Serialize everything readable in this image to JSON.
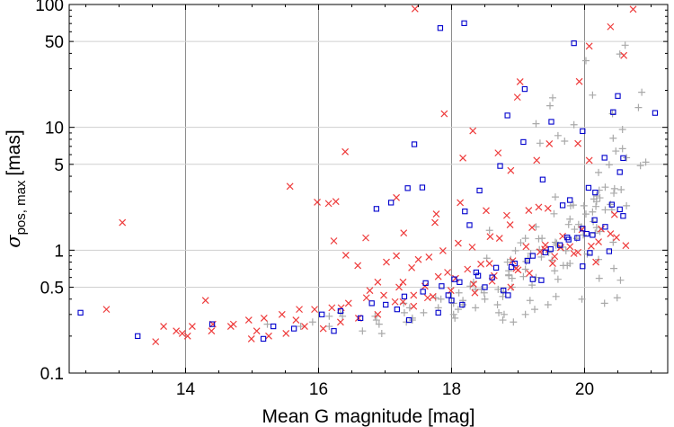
{
  "chart_data": {
    "type": "scatter",
    "title": "",
    "xlabel": "Mean G magnitude [mag]",
    "ylabel": {
      "symbol": "σ",
      "subscript": "pos, max",
      "unit": "[mas]"
    },
    "x_scale": "linear",
    "y_scale": "log",
    "xlim": [
      12.25,
      21.25
    ],
    "ylim": [
      0.1,
      100
    ],
    "x_ticks": [
      14,
      16,
      18,
      20
    ],
    "x_tick_labels": [
      "14",
      "16",
      "18",
      "20"
    ],
    "y_ticks": [
      0.1,
      0.5,
      1,
      5,
      10,
      50,
      100
    ],
    "y_tick_labels": [
      "0.1",
      "0.5",
      "1",
      "5",
      "10",
      "50",
      "100"
    ],
    "major_grid_x": [
      14,
      16,
      18,
      20
    ],
    "minor_grid_y": [
      0.5,
      1,
      5,
      10,
      50
    ],
    "grid": true,
    "legend": "none",
    "series": [
      {
        "marker": "plus",
        "color": "#a9a9a9",
        "x": [
          20.86,
          20.61,
          20.53,
          20.02,
          20.12,
          19.52,
          19.48,
          20.42,
          20.81,
          19.84,
          19.7,
          19.27,
          19.6,
          19.33,
          20.57,
          20.43,
          20.47,
          20.57,
          20.92,
          20.37,
          20.63,
          20.84,
          20.31,
          20.21,
          20.55,
          20.45,
          20.44,
          19.56,
          20.22,
          20.14,
          20.39,
          20.18,
          19.79,
          19.83,
          20.23,
          19.54,
          20.12,
          20.18,
          19.99,
          20.63,
          20.41,
          20.31,
          20.02,
          20.13,
          19.76,
          19.95,
          20.17,
          20.23,
          20.18,
          19.98,
          19.27,
          19.85,
          20.16,
          19.31,
          19.91,
          19.56,
          19.88,
          19.58,
          19.61,
          19.46,
          19.51,
          19.32,
          19.19,
          19.04,
          19.36,
          19.72,
          19.67,
          19.12,
          18.84,
          19.78,
          19.68,
          18.89,
          19.08,
          19.6,
          19.27,
          18.86,
          19.11,
          18.91,
          18.33,
          19.21,
          18.36,
          18.91,
          18.45,
          18.77,
          18.28,
          18.49,
          18.78,
          18.5,
          18.69,
          18.17,
          17.76,
          18.17,
          18.36,
          18.03,
          17.84,
          18.1,
          18.11,
          17.8,
          17.28,
          17.58,
          17.37,
          17.41,
          17.29,
          17.32,
          16.91,
          16.36,
          16.85,
          16.87,
          16.33,
          15.91,
          16.16,
          16.16,
          15.73,
          15.23,
          20.54,
          20.44,
          20.49,
          20.22,
          20.3,
          19.96,
          19.18,
          19.45,
          19.25,
          18.79,
          18.93,
          18.71,
          18.05,
          17.41,
          16.95,
          16.66,
          18.03,
          18.77,
          19.11,
          19.57,
          20.43,
          20.21,
          19.55,
          19.15,
          18.86,
          18.7,
          18.86,
          19.74,
          19.35,
          20.04,
          19.78,
          18.53,
          18.96,
          19.57,
          19.11,
          18.57
        ],
        "y": [
          19.3,
          46.6,
          39.5,
          34.9,
          18.3,
          17.4,
          15.0,
          12.9,
          14.5,
          10.5,
          7.72,
          10.7,
          8.57,
          7.43,
          9.61,
          8.16,
          6.41,
          6.71,
          5.21,
          4.96,
          5.66,
          4.88,
          3.26,
          4.29,
          3.11,
          3.17,
          2.91,
          2.71,
          3.08,
          2.61,
          2.36,
          2.76,
          2.3,
          2.33,
          2.67,
          1.98,
          2.05,
          2.49,
          2.3,
          2.3,
          2.13,
          2.13,
          1.97,
          1.71,
          1.62,
          1.55,
          2.27,
          1.42,
          1.53,
          1.33,
          1.55,
          1.48,
          1.38,
          1.24,
          1.62,
          1.16,
          1.25,
          1.14,
          1.08,
          0.96,
          0.83,
          1.01,
          0.94,
          1.15,
          1.25,
          0.99,
          1.06,
          0.81,
          0.8,
          0.78,
          0.75,
          0.84,
          0.61,
          0.58,
          0.6,
          0.68,
          0.7,
          0.59,
          0.55,
          0.52,
          0.48,
          0.5,
          0.48,
          0.42,
          0.51,
          0.45,
          0.46,
          0.4,
          0.36,
          0.36,
          0.41,
          0.39,
          0.34,
          0.37,
          0.4,
          0.33,
          0.45,
          0.34,
          0.37,
          0.31,
          0.34,
          0.28,
          0.31,
          0.26,
          0.25,
          0.29,
          0.29,
          0.27,
          0.31,
          0.26,
          0.29,
          0.24,
          0.24,
          0.25,
          0.57,
          0.71,
          0.41,
          0.59,
          0.37,
          0.4,
          0.39,
          0.36,
          0.33,
          0.3,
          0.26,
          0.31,
          0.28,
          0.27,
          0.21,
          0.22,
          0.3,
          0.27,
          0.3,
          0.42,
          1.16,
          0.84,
          0.68,
          0.86,
          0.63,
          0.48,
          0.62,
          0.75,
          0.88,
          0.93,
          1.79,
          0.86,
          0.99,
          1.1,
          1.25,
          1.45
        ]
      },
      {
        "marker": "cross",
        "color": "#ee3b3b",
        "x": [
          17.45,
          20.73,
          18.99,
          20.39,
          20.07,
          19.03,
          20.59,
          19.92,
          17.89,
          16.4,
          18.32,
          19.47,
          19.9,
          18.7,
          18.17,
          18.89,
          19.28,
          20.07,
          15.57,
          15.98,
          16.15,
          16.26,
          17.17,
          17.77,
          18.13,
          18.52,
          18.83,
          16.23,
          16.71,
          17.28,
          17.75,
          18.1,
          13.05,
          16.41,
          17.17,
          17.87,
          18.31,
          19.41,
          16.59,
          17.02,
          17.4,
          17.5,
          17.66,
          18.44,
          17.94,
          16.89,
          17.27,
          14.3,
          12.81,
          13.67,
          13.95,
          14.03,
          14.39,
          14.72,
          15.07,
          15.66,
          16.34,
          17.27,
          16.77,
          17.64,
          19.0,
          19.55,
          19.78,
          19.96,
          20.25,
          20.48,
          20.62,
          19.16,
          19.31,
          19.45,
          19.21,
          18.88,
          18.58,
          18.72,
          19.12,
          19.4,
          19.64,
          19.9,
          20.21,
          20.17,
          18.92,
          18.57,
          18.24,
          18.06,
          17.8,
          17.6,
          17.43,
          17.21,
          16.98,
          16.72,
          16.45,
          16.2,
          15.94,
          15.71,
          15.45,
          15.18,
          14.95,
          14.68,
          14.41,
          14.1,
          13.86,
          13.55,
          18.35,
          18.61,
          18.89,
          19.17,
          19.52,
          19.84,
          20.1,
          20.39,
          20.45,
          19.67,
          19.33,
          18.97,
          18.64,
          18.33,
          17.99,
          17.72,
          17.43,
          17.15,
          16.89,
          16.6,
          16.33,
          16.07,
          15.79,
          15.51,
          15.25,
          14.99
        ],
        "y": [
          92.2,
          91.5,
          17.6,
          65.9,
          45.8,
          23.5,
          38.5,
          23.6,
          12.9,
          6.33,
          9.37,
          7.35,
          7.38,
          6.19,
          5.63,
          4.45,
          5.39,
          5.38,
          3.31,
          2.46,
          2.4,
          2.49,
          2.68,
          1.97,
          2.44,
          2.1,
          1.92,
          1.19,
          1.26,
          1.38,
          1.68,
          1.14,
          1.68,
          0.91,
          0.9,
          0.99,
          1.06,
          1.1,
          0.75,
          0.8,
          0.72,
          0.84,
          0.88,
          0.77,
          0.66,
          0.55,
          0.55,
          0.39,
          0.33,
          0.24,
          0.21,
          0.2,
          0.22,
          0.25,
          0.22,
          0.27,
          0.34,
          0.38,
          0.47,
          0.41,
          0.69,
          0.89,
          1.07,
          1.47,
          1.49,
          1.27,
          1.09,
          2.11,
          2.24,
          2.19,
          1.53,
          1.61,
          1.29,
          1.25,
          1.07,
          1.02,
          1.05,
          0.96,
          1.17,
          0.8,
          0.82,
          0.78,
          0.7,
          0.59,
          0.61,
          0.51,
          0.43,
          0.5,
          0.43,
          0.41,
          0.37,
          0.34,
          0.33,
          0.33,
          0.3,
          0.28,
          0.27,
          0.24,
          0.25,
          0.24,
          0.22,
          0.18,
          0.45,
          0.56,
          0.5,
          0.65,
          0.78,
          0.94,
          1.08,
          1.36,
          1.95,
          1.3,
          0.97,
          0.71,
          0.62,
          0.53,
          0.47,
          0.42,
          0.35,
          0.38,
          0.3,
          0.28,
          0.26,
          0.23,
          0.24,
          0.21,
          0.2,
          0.19
        ]
      },
      {
        "marker": "square",
        "color": "#0000cd",
        "x": [
          18.19,
          17.83,
          19.84,
          19.1,
          20.5,
          21.06,
          18.84,
          19.5,
          20.43,
          19.97,
          19.08,
          17.44,
          20.3,
          18.73,
          17.56,
          18.42,
          20.58,
          20.53,
          19.37,
          20.06,
          20.41,
          20.16,
          20.53,
          17.34,
          16.87,
          17.09,
          19.67,
          19.78,
          18.2,
          18.27,
          20.15,
          19.74,
          19.97,
          12.42,
          13.28,
          14.4,
          15.32,
          16.05,
          16.33,
          17.01,
          17.29,
          17.57,
          17.85,
          18.12,
          18.4,
          18.67,
          18.95,
          19.22,
          19.49,
          19.76,
          20.03,
          20.31,
          20.58,
          17.61,
          18.04,
          18.37,
          18.61,
          18.9,
          19.14,
          19.41,
          19.63,
          19.89,
          20.12,
          17.95,
          18.5,
          19.22,
          20.08,
          16.8,
          17.18,
          18.0,
          18.78,
          19.35,
          19.97,
          20.37,
          15.17,
          15.63,
          16.23,
          16.63,
          17.36,
          17.8,
          18.16,
          18.85
        ],
        "y": [
          70.4,
          64.3,
          48.4,
          20.5,
          18.0,
          13.1,
          12.5,
          11.1,
          13.3,
          9.31,
          7.6,
          7.28,
          5.66,
          4.85,
          3.24,
          3.06,
          5.62,
          4.32,
          3.76,
          3.22,
          2.35,
          2.95,
          2.15,
          3.2,
          2.17,
          2.44,
          2.32,
          2.56,
          2.07,
          1.6,
          1.76,
          1.27,
          1.5,
          0.31,
          0.2,
          0.25,
          0.24,
          0.3,
          0.32,
          0.36,
          0.42,
          0.46,
          0.51,
          0.55,
          0.62,
          0.72,
          0.78,
          0.9,
          1.02,
          1.22,
          1.36,
          1.55,
          1.9,
          0.54,
          0.58,
          0.66,
          0.6,
          0.73,
          0.82,
          0.96,
          1.1,
          1.26,
          1.33,
          0.43,
          0.5,
          0.58,
          0.95,
          0.37,
          0.33,
          0.39,
          0.47,
          0.57,
          0.74,
          0.98,
          0.19,
          0.23,
          0.22,
          0.28,
          0.27,
          0.31,
          0.36,
          0.43
        ]
      }
    ]
  }
}
